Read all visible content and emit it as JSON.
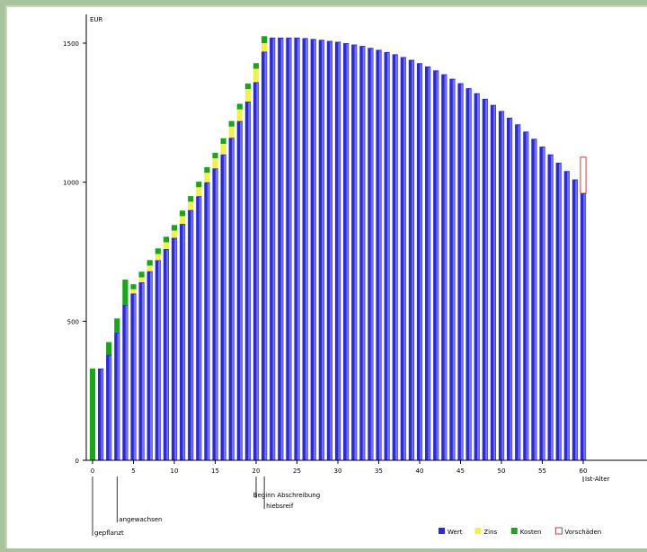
{
  "chart_data": {
    "type": "bar",
    "title": "",
    "ylabel": "EUR",
    "xlabel": "",
    "xlim": [
      0,
      80
    ],
    "ylim": [
      0,
      1600
    ],
    "yticks": [
      0,
      500,
      1000,
      1500
    ],
    "xticks": [
      0,
      5,
      10,
      15,
      20,
      25,
      30,
      35,
      40,
      45,
      50,
      55,
      60
    ],
    "xtick_labels": [
      "0",
      "5",
      "10",
      "15",
      "20",
      "25",
      "30",
      "35",
      "40",
      "45",
      "50",
      "55",
      "60"
    ],
    "grid": false,
    "legend_position": "bottom-right",
    "colors": {
      "wert": "#2b2bd0",
      "wert_light": "#7474f2",
      "zins": "#f0f050",
      "kosten": "#1aa51a",
      "vorschaeden": "#c04040"
    },
    "x": [
      0,
      1,
      2,
      3,
      4,
      5,
      6,
      7,
      8,
      9,
      10,
      11,
      12,
      13,
      14,
      15,
      16,
      17,
      18,
      19,
      20,
      21,
      22,
      23,
      24,
      25,
      26,
      27,
      28,
      29,
      30,
      31,
      32,
      33,
      34,
      35,
      36,
      37,
      38,
      39,
      40,
      41,
      42,
      43,
      44,
      45,
      46,
      47,
      48,
      49,
      50,
      51,
      52,
      53,
      54,
      55,
      56,
      57,
      58,
      59,
      60
    ],
    "series": [
      {
        "name": "Wert",
        "values": [
          0,
          330,
          380,
          460,
          560,
          600,
          640,
          680,
          720,
          760,
          800,
          850,
          900,
          950,
          1000,
          1050,
          1100,
          1160,
          1220,
          1290,
          1360,
          1470,
          1520,
          1520,
          1520,
          1520,
          1518,
          1515,
          1512,
          1508,
          1505,
          1500,
          1495,
          1490,
          1483,
          1476,
          1468,
          1460,
          1450,
          1440,
          1428,
          1416,
          1402,
          1388,
          1372,
          1356,
          1338,
          1320,
          1300,
          1278,
          1256,
          1232,
          1208,
          1182,
          1156,
          1128,
          1100,
          1070,
          1040,
          1010,
          960
        ]
      },
      {
        "name": "Zins",
        "values": [
          0,
          0,
          0,
          0,
          0,
          15,
          18,
          20,
          22,
          24,
          26,
          28,
          30,
          32,
          34,
          36,
          38,
          40,
          42,
          45,
          48,
          30,
          0,
          0,
          0,
          0,
          0,
          0,
          0,
          0,
          0,
          0,
          0,
          0,
          0,
          0,
          0,
          0,
          0,
          0,
          0,
          0,
          0,
          0,
          0,
          0,
          0,
          0,
          0,
          0,
          0,
          0,
          0,
          0,
          0,
          0,
          0,
          0,
          0,
          0,
          0
        ]
      },
      {
        "name": "Kosten",
        "values": [
          330,
          0,
          45,
          50,
          90,
          18,
          20,
          20,
          20,
          20,
          20,
          20,
          20,
          20,
          20,
          20,
          20,
          20,
          20,
          20,
          20,
          25,
          0,
          0,
          0,
          0,
          0,
          0,
          0,
          0,
          0,
          0,
          0,
          0,
          0,
          0,
          0,
          0,
          0,
          0,
          0,
          0,
          0,
          0,
          0,
          0,
          0,
          0,
          0,
          0,
          0,
          0,
          0,
          0,
          0,
          0,
          0,
          0,
          0,
          0,
          0
        ]
      },
      {
        "name": "Vorschäden",
        "values": [
          0,
          0,
          0,
          0,
          0,
          0,
          0,
          0,
          0,
          0,
          0,
          0,
          0,
          0,
          0,
          0,
          0,
          0,
          0,
          0,
          0,
          0,
          0,
          0,
          0,
          0,
          0,
          0,
          0,
          0,
          0,
          0,
          0,
          0,
          0,
          0,
          0,
          0,
          0,
          0,
          0,
          0,
          0,
          0,
          0,
          0,
          0,
          0,
          0,
          0,
          0,
          0,
          0,
          0,
          0,
          0,
          0,
          0,
          0,
          0,
          130
        ]
      }
    ],
    "annotations": [
      {
        "x": 0,
        "label": "gepflanzt"
      },
      {
        "x": 3,
        "label": "angewachsen"
      },
      {
        "x": 20,
        "label": "Beginn Abschreibung"
      },
      {
        "x": 21,
        "label": "hiebsreif"
      },
      {
        "x": 60,
        "label": "Ist-Alter"
      }
    ]
  }
}
